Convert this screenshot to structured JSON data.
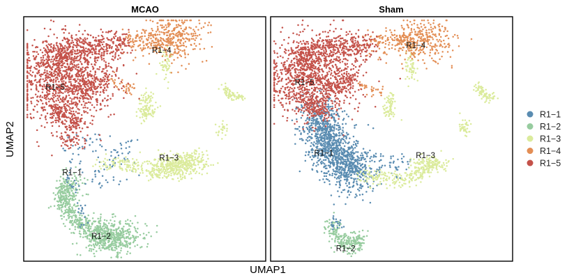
{
  "chart_data": {
    "type": "scatter",
    "xlabel": "UMAP1",
    "ylabel": "UMAP2",
    "legend_position": "right",
    "grid": false,
    "legend": [
      {
        "id": "R1-1",
        "label": "R1−1",
        "color": "#5a8cb1"
      },
      {
        "id": "R1-2",
        "label": "R1−2",
        "color": "#97cc9f"
      },
      {
        "id": "R1-3",
        "label": "R1−3",
        "color": "#dbeb9c"
      },
      {
        "id": "R1-4",
        "label": "R1−4",
        "color": "#e38e55"
      },
      {
        "id": "R1-5",
        "label": "R1−5",
        "color": "#c4524a"
      }
    ],
    "panels": [
      {
        "title": "MCAO",
        "labels": [
          {
            "text": "R1−5",
            "x": 0.13,
            "y": 0.71
          },
          {
            "text": "R1−4",
            "x": 0.57,
            "y": 0.86
          },
          {
            "text": "R1−3",
            "x": 0.6,
            "y": 0.42
          },
          {
            "text": "R1−1",
            "x": 0.2,
            "y": 0.36
          },
          {
            "text": "R1−2",
            "x": 0.32,
            "y": 0.1
          }
        ]
      },
      {
        "title": "Sham",
        "labels": [
          {
            "text": "R1−5",
            "x": 0.14,
            "y": 0.73
          },
          {
            "text": "R1−4",
            "x": 0.6,
            "y": 0.88
          },
          {
            "text": "R1−3",
            "x": 0.64,
            "y": 0.43
          },
          {
            "text": "R1−1",
            "x": 0.22,
            "y": 0.44
          },
          {
            "text": "R1−2",
            "x": 0.31,
            "y": 0.05
          }
        ]
      }
    ]
  }
}
